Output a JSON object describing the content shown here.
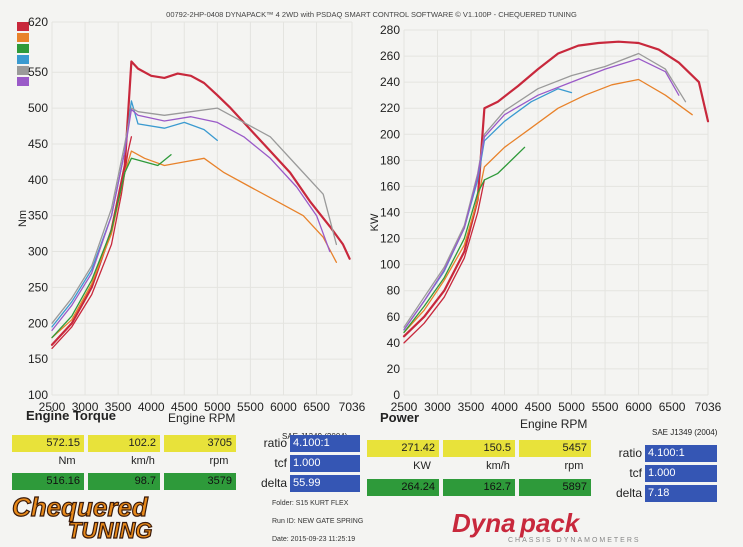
{
  "header": "00792-2HP-0408 DYNAPACK™ 4 2WD with PSDAQ SMART CONTROL SOFTWARE © V1.100P - CHEQUERED TUNING",
  "legend_colors": [
    "#c8283c",
    "#e8822a",
    "#2e9a3a",
    "#3a9ad0",
    "#9a9a9a",
    "#9a5ac8"
  ],
  "chart_data": [
    {
      "type": "line",
      "title": "Engine Torque",
      "xlabel": "Engine RPM",
      "ylabel": "Nm",
      "xlim": [
        2500,
        7036
      ],
      "ylim": [
        100,
        620
      ],
      "x_ticks": [
        "2500",
        "3000",
        "3500",
        "4000",
        "4500",
        "5000",
        "5500",
        "6000",
        "6500",
        "7036"
      ],
      "y_ticks": [
        "100",
        "150",
        "200",
        "250",
        "300",
        "350",
        "400",
        "450",
        "500",
        "550",
        "620"
      ],
      "note": "SAE J1349 (2004)",
      "series": [
        {
          "color": "#c8283c",
          "x": [
            2500,
            2800,
            3100,
            3400,
            3600,
            3700,
            3800,
            4000,
            4200,
            4400,
            4600,
            4800,
            5000,
            5200,
            5500,
            5800,
            6100,
            6400,
            6700,
            6900,
            7000
          ],
          "y": [
            170,
            200,
            250,
            330,
            420,
            565,
            555,
            545,
            542,
            548,
            545,
            535,
            518,
            500,
            470,
            440,
            410,
            370,
            335,
            310,
            290
          ]
        },
        {
          "color": "#c8283c",
          "x": [
            2500,
            2800,
            3100,
            3400,
            3550,
            3650,
            3700
          ],
          "y": [
            165,
            195,
            240,
            310,
            380,
            440,
            460
          ]
        },
        {
          "color": "#e8822a",
          "x": [
            2500,
            2800,
            3100,
            3400,
            3600,
            3700,
            3900,
            4200,
            4500,
            4800,
            5100,
            5500,
            5900,
            6300,
            6600,
            6800
          ],
          "y": [
            180,
            205,
            255,
            325,
            410,
            440,
            430,
            420,
            425,
            430,
            410,
            390,
            370,
            350,
            320,
            285
          ]
        },
        {
          "color": "#2e9a3a",
          "x": [
            2500,
            2800,
            3100,
            3400,
            3600,
            3700,
            3900,
            4100,
            4300
          ],
          "y": [
            180,
            210,
            260,
            330,
            410,
            430,
            425,
            420,
            435
          ]
        },
        {
          "color": "#3a9ad0",
          "x": [
            2500,
            2800,
            3100,
            3400,
            3600,
            3700,
            3800,
            4200,
            4500,
            4800,
            5000
          ],
          "y": [
            195,
            230,
            275,
            350,
            440,
            510,
            478,
            472,
            480,
            470,
            455
          ]
        },
        {
          "color": "#9a9a9a",
          "x": [
            2500,
            2800,
            3100,
            3400,
            3600,
            3700,
            3800,
            4200,
            4600,
            5000,
            5400,
            5800,
            6200,
            6600,
            6800
          ],
          "y": [
            200,
            235,
            280,
            360,
            450,
            500,
            495,
            490,
            495,
            500,
            480,
            460,
            420,
            380,
            310
          ]
        },
        {
          "color": "#9a5ac8",
          "x": [
            2500,
            2800,
            3100,
            3400,
            3600,
            3700,
            3800,
            4200,
            4600,
            5000,
            5400,
            5800,
            6200,
            6500,
            6700
          ],
          "y": [
            190,
            225,
            270,
            350,
            440,
            498,
            490,
            482,
            488,
            480,
            460,
            430,
            390,
            350,
            300
          ]
        }
      ]
    },
    {
      "type": "line",
      "title": "Power",
      "xlabel": "Engine RPM",
      "ylabel": "KW",
      "xlim": [
        2500,
        7036
      ],
      "ylim": [
        0,
        280
      ],
      "x_ticks": [
        "2500",
        "3000",
        "3500",
        "4000",
        "4500",
        "5000",
        "5500",
        "6000",
        "6500",
        "7036"
      ],
      "y_ticks": [
        "0",
        "20",
        "40",
        "60",
        "80",
        "100",
        "120",
        "140",
        "160",
        "180",
        "200",
        "220",
        "240",
        "260",
        "280"
      ],
      "note": "SAE J1349 (2004)",
      "series": [
        {
          "color": "#c8283c",
          "x": [
            2500,
            2800,
            3100,
            3400,
            3600,
            3700,
            3900,
            4200,
            4500,
            4800,
            5100,
            5400,
            5700,
            6000,
            6300,
            6600,
            6900,
            7036
          ],
          "y": [
            45,
            60,
            80,
            110,
            150,
            220,
            225,
            237,
            250,
            262,
            268,
            270,
            271,
            270,
            265,
            255,
            240,
            210
          ]
        },
        {
          "color": "#c8283c",
          "x": [
            2500,
            2800,
            3100,
            3400,
            3600,
            3700
          ],
          "y": [
            40,
            55,
            75,
            105,
            140,
            165
          ]
        },
        {
          "color": "#e8822a",
          "x": [
            2500,
            2800,
            3100,
            3400,
            3600,
            3700,
            4000,
            4400,
            4800,
            5200,
            5600,
            6000,
            6400,
            6800
          ],
          "y": [
            48,
            65,
            88,
            115,
            150,
            175,
            190,
            205,
            220,
            230,
            238,
            242,
            230,
            215
          ]
        },
        {
          "color": "#2e9a3a",
          "x": [
            2500,
            2800,
            3100,
            3400,
            3600,
            3700,
            3900,
            4100,
            4300
          ],
          "y": [
            48,
            68,
            90,
            120,
            155,
            165,
            170,
            180,
            190
          ]
        },
        {
          "color": "#3a9ad0",
          "x": [
            2500,
            2800,
            3100,
            3400,
            3600,
            3700,
            4000,
            4400,
            4800,
            5000
          ],
          "y": [
            50,
            72,
            95,
            128,
            165,
            195,
            210,
            225,
            235,
            232
          ]
        },
        {
          "color": "#9a9a9a",
          "x": [
            2500,
            2800,
            3100,
            3400,
            3600,
            3700,
            4000,
            4500,
            5000,
            5500,
            6000,
            6400,
            6700
          ],
          "y": [
            52,
            75,
            98,
            130,
            170,
            200,
            218,
            235,
            245,
            252,
            262,
            250,
            225
          ]
        },
        {
          "color": "#9a5ac8",
          "x": [
            2500,
            2800,
            3100,
            3400,
            3600,
            3700,
            4000,
            4500,
            5000,
            5500,
            6000,
            6400,
            6600
          ],
          "y": [
            50,
            72,
            96,
            128,
            168,
            198,
            215,
            230,
            240,
            250,
            258,
            248,
            230
          ]
        }
      ]
    }
  ],
  "torque_panel": {
    "title": "Engine Torque",
    "rpm_label": "Engine RPM",
    "sae": "SAE J1349 (2004)",
    "row1": [
      "572.15",
      "102.2",
      "3705"
    ],
    "units": [
      "Nm",
      "km/h",
      "rpm"
    ],
    "row2": [
      "516.16",
      "98.7",
      "3579"
    ],
    "ratio_label": "ratio",
    "ratio": "4.100:1",
    "tcf_label": "tcf",
    "tcf": "1.000",
    "delta_label": "delta",
    "delta": "55.99"
  },
  "power_panel": {
    "title": "Power",
    "rpm_label": "Engine RPM",
    "sae": "SAE J1349 (2004)",
    "row1": [
      "271.42",
      "150.5",
      "5457"
    ],
    "units": [
      "KW",
      "km/h",
      "rpm"
    ],
    "row2": [
      "264.24",
      "162.7",
      "5897"
    ],
    "ratio_label": "ratio",
    "ratio": "4.100:1",
    "tcf_label": "tcf",
    "tcf": "1.000",
    "delta_label": "delta",
    "delta": "7.18"
  },
  "meta": {
    "folder": "Folder: S15 KURT FLEX",
    "run_id": "Run ID: NEW GATE SPRING",
    "date": "Date: 2015-09-23 11:25:19"
  },
  "logos": {
    "chequered": [
      "Chequered",
      "TUNING"
    ],
    "dynapack": [
      "Dynapack",
      "CHASSIS DYNAMOMETERS"
    ]
  }
}
